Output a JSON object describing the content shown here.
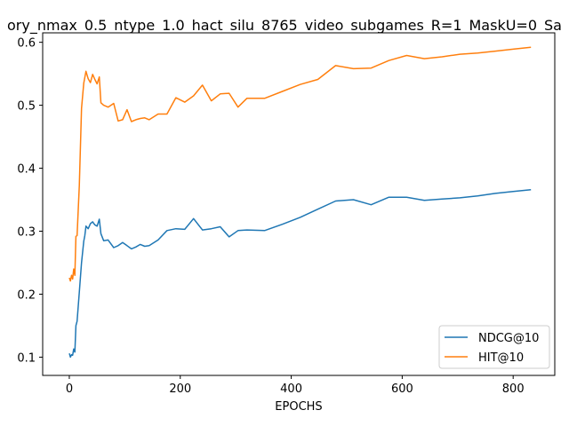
{
  "chart_data": {
    "type": "line",
    "title": "ory_nmax_0.5_ntype_1.0_hact_silu_8765_video_subgames_R=1_MaskU=0_Sa",
    "xlabel": "EPOCHS",
    "ylabel": "",
    "xlim": [
      -48,
      875
    ],
    "ylim": [
      0.071,
      0.615
    ],
    "xticks": [
      0,
      200,
      400,
      600,
      800
    ],
    "yticks": [
      0.1,
      0.2,
      0.3,
      0.4,
      0.5,
      0.6
    ],
    "grid": false,
    "legend_position": "lower-right",
    "series": [
      {
        "name": "NDCG@10",
        "color": "#1f77b4",
        "x": [
          0,
          2,
          4,
          6,
          8,
          10,
          12,
          14,
          18,
          22,
          26,
          28,
          30,
          34,
          38,
          42,
          46,
          50,
          54,
          57,
          62,
          70,
          80,
          88,
          96,
          104,
          112,
          120,
          128,
          136,
          144,
          160,
          176,
          192,
          208,
          224,
          240,
          256,
          272,
          288,
          304,
          320,
          352,
          384,
          416,
          448,
          480,
          512,
          544,
          576,
          608,
          640,
          672,
          704,
          736,
          768,
          800,
          832
        ],
        "y": [
          0.106,
          0.1,
          0.104,
          0.103,
          0.113,
          0.108,
          0.15,
          0.157,
          0.203,
          0.25,
          0.284,
          0.293,
          0.308,
          0.304,
          0.312,
          0.315,
          0.31,
          0.308,
          0.319,
          0.296,
          0.285,
          0.286,
          0.274,
          0.277,
          0.282,
          0.277,
          0.272,
          0.275,
          0.279,
          0.276,
          0.277,
          0.286,
          0.301,
          0.304,
          0.303,
          0.32,
          0.302,
          0.304,
          0.307,
          0.291,
          0.301,
          0.302,
          0.301,
          0.311,
          0.322,
          0.335,
          0.348,
          0.35,
          0.342,
          0.354,
          0.354,
          0.349,
          0.351,
          0.353,
          0.356,
          0.36,
          0.363,
          0.366
        ]
      },
      {
        "name": "HIT@10",
        "color": "#ff7f0e",
        "x": [
          0,
          2,
          4,
          6,
          8,
          10,
          12,
          14,
          18,
          22,
          26,
          30,
          34,
          38,
          42,
          46,
          50,
          54,
          57,
          62,
          70,
          80,
          88,
          96,
          104,
          112,
          120,
          128,
          136,
          144,
          160,
          176,
          192,
          208,
          224,
          240,
          256,
          272,
          288,
          304,
          320,
          352,
          384,
          416,
          448,
          480,
          512,
          544,
          576,
          608,
          640,
          672,
          704,
          736,
          768,
          800,
          832
        ],
        "y": [
          0.226,
          0.221,
          0.23,
          0.224,
          0.24,
          0.23,
          0.292,
          0.293,
          0.372,
          0.495,
          0.535,
          0.554,
          0.542,
          0.536,
          0.549,
          0.541,
          0.534,
          0.545,
          0.504,
          0.5,
          0.497,
          0.503,
          0.475,
          0.477,
          0.493,
          0.474,
          0.477,
          0.479,
          0.48,
          0.477,
          0.486,
          0.486,
          0.512,
          0.505,
          0.515,
          0.532,
          0.507,
          0.518,
          0.519,
          0.497,
          0.511,
          0.511,
          0.522,
          0.533,
          0.541,
          0.563,
          0.558,
          0.559,
          0.571,
          0.579,
          0.574,
          0.577,
          0.581,
          0.583,
          0.586,
          0.589,
          0.592
        ]
      }
    ]
  }
}
